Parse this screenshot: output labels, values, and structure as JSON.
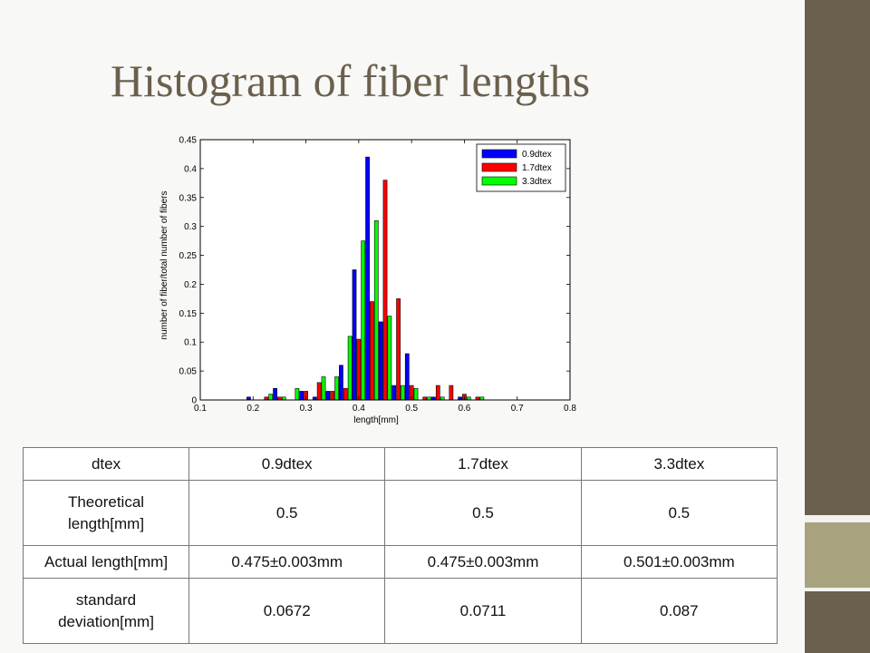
{
  "title": "Histogram of fiber lengths",
  "colors": {
    "title": "#6a604d",
    "sidebar": "#6a604d",
    "sidebar_accent": "#a8a37e",
    "series_0_9dtex": "#0000ff",
    "series_1_7dtex": "#ff0000",
    "series_3_3dtex": "#00ff00"
  },
  "chart_data": {
    "type": "bar",
    "xlabel": "length[mm]",
    "ylabel": "number of fiber/total number of fibers",
    "xlim": [
      0.1,
      0.8
    ],
    "ylim": [
      0,
      0.45
    ],
    "xticks": [
      "0.1",
      "0.2",
      "0.3",
      "0.4",
      "0.5",
      "0.6",
      "0.7",
      "0.8"
    ],
    "yticks": [
      "0",
      "0.05",
      "0.1",
      "0.15",
      "0.2",
      "0.25",
      "0.3",
      "0.35",
      "0.4",
      "0.45"
    ],
    "legend_position": "top-right",
    "x": [
      0.2,
      0.225,
      0.25,
      0.275,
      0.3,
      0.325,
      0.35,
      0.375,
      0.4,
      0.425,
      0.45,
      0.475,
      0.5,
      0.525,
      0.55,
      0.575,
      0.6,
      0.625,
      0.65
    ],
    "series": [
      {
        "name": "0.9dtex",
        "color": "#0000ff",
        "values": [
          0.005,
          0,
          0.02,
          0,
          0.015,
          0.005,
          0.015,
          0.06,
          0.225,
          0.42,
          0.135,
          0.025,
          0.08,
          0,
          0.005,
          0,
          0.005,
          0,
          0
        ]
      },
      {
        "name": "1.7dtex",
        "color": "#ff0000",
        "values": [
          0,
          0.005,
          0.005,
          0,
          0.015,
          0.03,
          0.015,
          0.02,
          0.105,
          0.17,
          0.38,
          0.175,
          0.025,
          0.005,
          0.025,
          0.025,
          0.01,
          0.005,
          0
        ]
      },
      {
        "name": "3.3dtex",
        "color": "#00ff00",
        "values": [
          0,
          0.01,
          0.005,
          0.02,
          0,
          0.04,
          0.04,
          0.11,
          0.275,
          0.31,
          0.145,
          0.025,
          0.02,
          0.005,
          0.005,
          0,
          0.005,
          0.005,
          0
        ]
      }
    ]
  },
  "table": {
    "header": [
      "dtex",
      "0.9dtex",
      "1.7dtex",
      "3.3dtex"
    ],
    "rows": [
      [
        "Theoretical length[mm]",
        "0.5",
        "0.5",
        "0.5"
      ],
      [
        "Actual length[mm]",
        "0.475±0.003mm",
        "0.475±0.003mm",
        "0.501±0.003mm"
      ],
      [
        "standard deviation[mm]",
        "0.0672",
        "0.0711",
        "0.087"
      ]
    ]
  }
}
